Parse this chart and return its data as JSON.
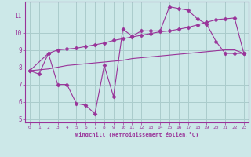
{
  "xlabel": "Windchill (Refroidissement éolien,°C)",
  "xlim": [
    -0.5,
    23.5
  ],
  "ylim": [
    4.8,
    11.8
  ],
  "yticks": [
    5,
    6,
    7,
    8,
    9,
    10,
    11
  ],
  "xticks": [
    0,
    1,
    2,
    3,
    4,
    5,
    6,
    7,
    8,
    9,
    10,
    11,
    12,
    13,
    14,
    15,
    16,
    17,
    18,
    19,
    20,
    21,
    22,
    23
  ],
  "bg_color": "#cce8e8",
  "grid_color": "#aacccc",
  "line_color": "#993399",
  "line1_x": [
    0,
    1,
    2,
    3,
    4,
    5,
    6,
    7,
    8,
    9,
    10,
    11,
    12,
    13,
    14,
    15,
    16,
    17,
    18,
    19,
    20,
    21,
    22,
    23
  ],
  "line1_y": [
    7.8,
    7.6,
    8.8,
    7.0,
    7.0,
    5.9,
    5.8,
    5.3,
    8.1,
    6.3,
    10.2,
    9.8,
    10.1,
    10.1,
    10.1,
    11.5,
    11.4,
    11.3,
    10.8,
    10.5,
    9.5,
    8.8,
    8.8,
    8.8
  ],
  "line2_x": [
    0,
    2,
    3,
    4,
    5,
    6,
    7,
    8,
    9,
    10,
    11,
    12,
    13,
    14,
    15,
    16,
    17,
    18,
    19,
    20,
    21,
    22,
    23
  ],
  "line2_y": [
    7.8,
    8.8,
    9.0,
    9.05,
    9.1,
    9.2,
    9.3,
    9.4,
    9.55,
    9.65,
    9.75,
    9.85,
    9.95,
    10.05,
    10.1,
    10.2,
    10.3,
    10.45,
    10.6,
    10.75,
    10.8,
    10.85,
    8.8
  ],
  "line3_x": [
    0,
    1,
    2,
    3,
    4,
    5,
    6,
    7,
    8,
    9,
    10,
    11,
    12,
    13,
    14,
    15,
    16,
    17,
    18,
    19,
    20,
    21,
    22,
    23
  ],
  "line3_y": [
    7.8,
    7.85,
    7.9,
    8.0,
    8.1,
    8.15,
    8.2,
    8.25,
    8.3,
    8.35,
    8.4,
    8.5,
    8.55,
    8.6,
    8.65,
    8.7,
    8.75,
    8.8,
    8.85,
    8.9,
    8.95,
    9.0,
    9.0,
    8.8
  ]
}
